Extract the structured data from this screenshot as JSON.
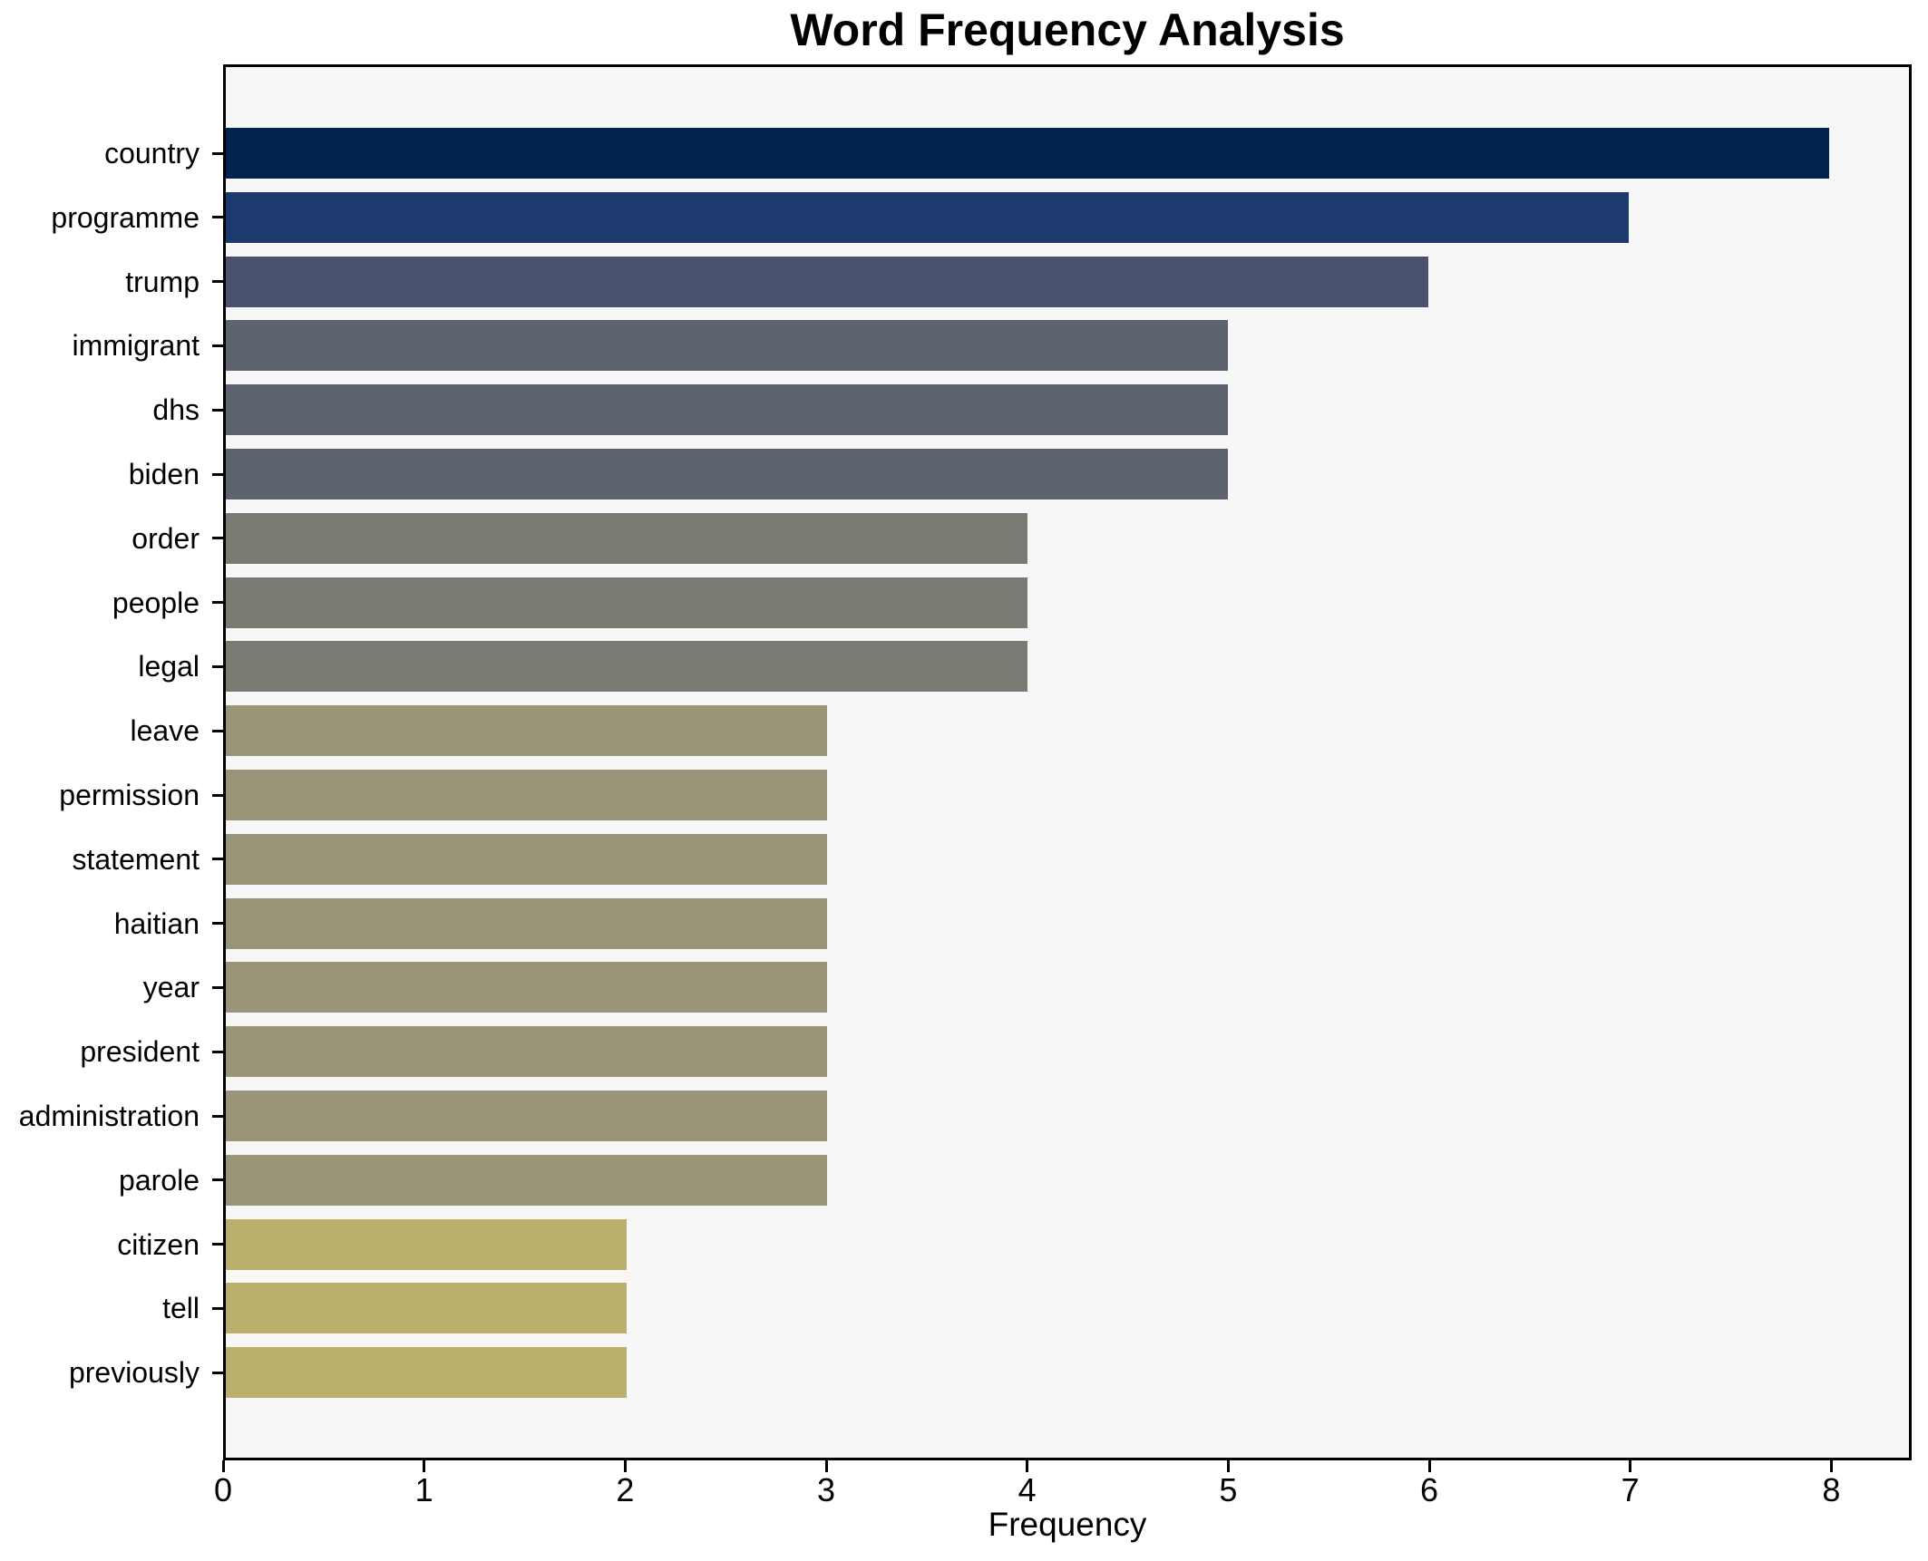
{
  "chart_data": {
    "type": "bar",
    "orientation": "horizontal",
    "title": "Word Frequency Analysis",
    "xlabel": "Frequency",
    "ylabel": "",
    "categories": [
      "country",
      "programme",
      "trump",
      "immigrant",
      "dhs",
      "biden",
      "order",
      "people",
      "legal",
      "leave",
      "permission",
      "statement",
      "haitian",
      "year",
      "president",
      "administration",
      "parole",
      "citizen",
      "tell",
      "previously"
    ],
    "values": [
      8,
      7,
      6,
      5,
      5,
      5,
      4,
      4,
      4,
      3,
      3,
      3,
      3,
      3,
      3,
      3,
      3,
      2,
      2,
      2
    ],
    "bar_colors": [
      "#02234f",
      "#1d3a6e",
      "#49536e",
      "#5c626e",
      "#5c626e",
      "#5c626e",
      "#7b7a72",
      "#7b7a72",
      "#7b7a72",
      "#9a9478",
      "#9a9478",
      "#9a9478",
      "#9a9478",
      "#9a9478",
      "#9a9478",
      "#9a9478",
      "#9a9478",
      "#bcae6d",
      "#bcae6d",
      "#bcae6d"
    ],
    "x_tick_labels": [
      "0",
      "1",
      "2",
      "3",
      "4",
      "5",
      "6",
      "7",
      "8"
    ],
    "xlim": [
      0,
      8.4
    ],
    "grid": false,
    "legend_position": "none",
    "plot_bg": "#f7f7f8",
    "figure_bg": "#ffffff",
    "spine_color": "#000000"
  }
}
